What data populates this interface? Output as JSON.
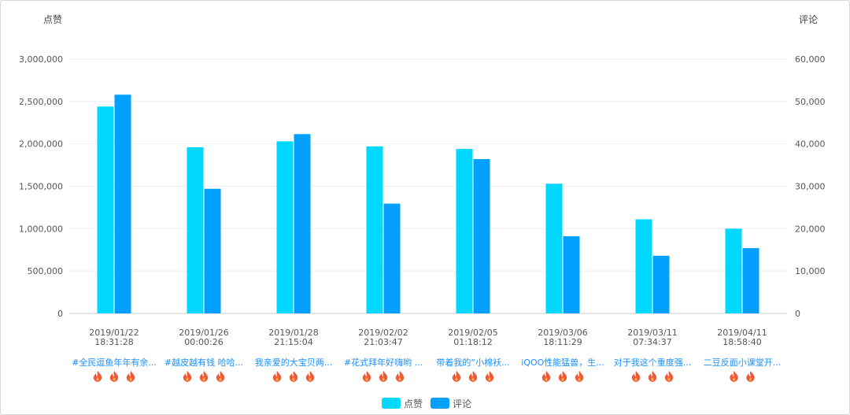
{
  "chart_data": {
    "type": "bar",
    "y_left_label": "点赞",
    "y_right_label": "评论",
    "y_left_ticks": [
      "0",
      "500,000",
      "1,000,000",
      "1,500,000",
      "2,000,000",
      "2,500,000",
      "3,000,000"
    ],
    "y_right_ticks": [
      "0",
      "10,000",
      "20,000",
      "30,000",
      "40,000",
      "50,000",
      "60,000"
    ],
    "ylim_left": [
      0,
      3000000
    ],
    "ylim_right": [
      0,
      60000
    ],
    "grid": true,
    "legend_position": "bottom-center",
    "categories": [
      {
        "date": "2019/01/22",
        "time": "18:31:28",
        "title": "#全民逗鱼年年有余...",
        "fires": 3
      },
      {
        "date": "2019/01/26",
        "time": "00:00:26",
        "title": "#越皮越有钱 哈哈...",
        "fires": 3
      },
      {
        "date": "2019/01/28",
        "time": "21:15:04",
        "title": "我亲爱的大宝贝两...",
        "fires": 3
      },
      {
        "date": "2019/02/02",
        "time": "21:03:47",
        "title": "#花式拜年好嗨哟 ...",
        "fires": 3
      },
      {
        "date": "2019/02/05",
        "time": "01:18:12",
        "title": "带着我的“小棉袄...",
        "fires": 3
      },
      {
        "date": "2019/03/06",
        "time": "18:11:29",
        "title": "iQOO性能猛兽，生...",
        "fires": 3
      },
      {
        "date": "2019/03/11",
        "time": "07:34:37",
        "title": "对于我这个重度强...",
        "fires": 3
      },
      {
        "date": "2019/04/11",
        "time": "18:58:40",
        "title": "二豆反面小课堂开...",
        "fires": 2
      }
    ],
    "series": [
      {
        "name": "点赞",
        "axis": "left",
        "color": "#00d8ff",
        "values": [
          2440000,
          1960000,
          2030000,
          1970000,
          1940000,
          1530000,
          1110000,
          1000000
        ]
      },
      {
        "name": "评论",
        "axis": "right",
        "color": "#03a0ff",
        "values": [
          51600,
          29400,
          42300,
          25900,
          36400,
          18200,
          13600,
          15400
        ]
      }
    ]
  },
  "icons": {
    "fire": "fire-icon",
    "fire_color": "#f05a3a"
  }
}
